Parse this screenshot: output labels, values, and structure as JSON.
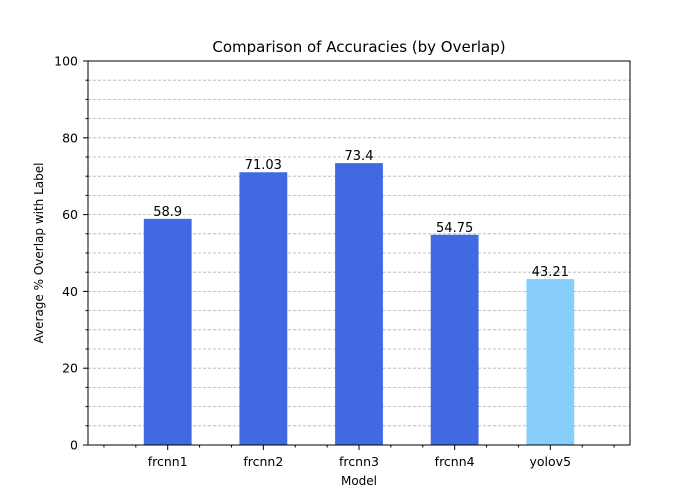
{
  "chart_data": {
    "type": "bar",
    "title": "Comparison of Accuracies (by Overlap)",
    "xlabel": "Model",
    "ylabel": "Average % Overlap with Label",
    "categories": [
      "frcnn1",
      "frcnn2",
      "frcnn3",
      "frcnn4",
      "yolov5"
    ],
    "values": [
      58.9,
      71.03,
      73.4,
      54.75,
      43.21
    ],
    "value_labels": [
      "58.9",
      "71.03",
      "73.4",
      "54.75",
      "43.21"
    ],
    "bar_colors": [
      "#4169e1",
      "#4169e1",
      "#4169e1",
      "#4169e1",
      "#87cefa"
    ],
    "ylim": [
      0,
      100
    ],
    "yticks": [
      0,
      20,
      40,
      60,
      80,
      100
    ],
    "yticks_minor": [
      5,
      10,
      15,
      25,
      30,
      35,
      45,
      50,
      55,
      65,
      70,
      75,
      85,
      90,
      95
    ],
    "grid": true,
    "grid_axis": "y",
    "legend": false
  }
}
